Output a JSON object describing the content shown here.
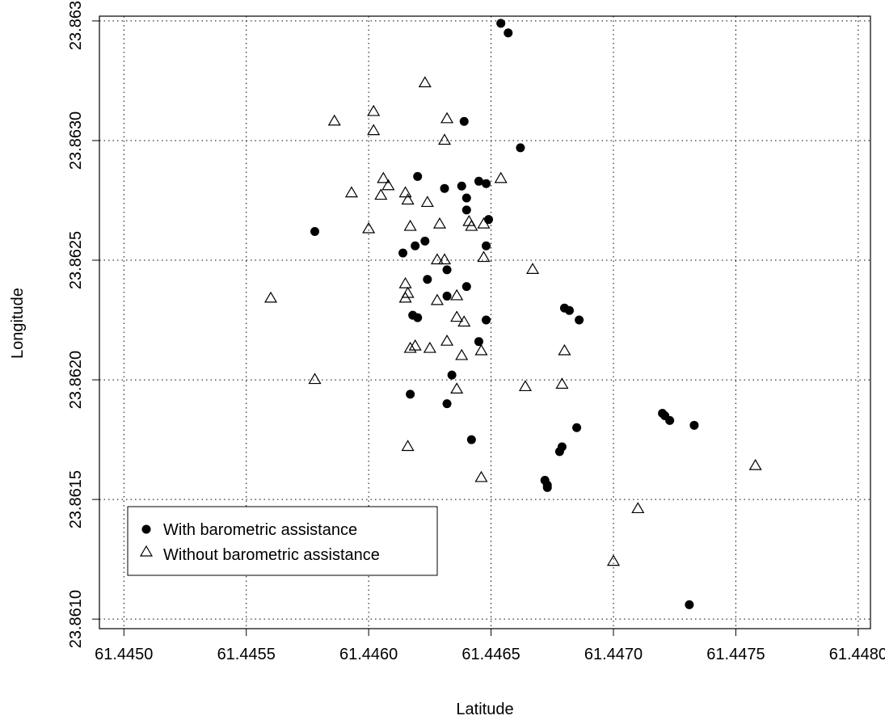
{
  "chart_data": {
    "type": "scatter",
    "title": "",
    "xlabel": "Latitude",
    "ylabel": "Longitude",
    "xlim": [
      61.4449,
      61.44805
    ],
    "ylim": [
      23.86096,
      23.86352
    ],
    "x_ticks": [
      61.445,
      61.4455,
      61.446,
      61.4465,
      61.447,
      61.4475,
      61.448
    ],
    "x_tick_labels": [
      "61.4450",
      "61.4455",
      "61.4460",
      "61.4465",
      "61.4470",
      "61.4475",
      "61.4480"
    ],
    "y_ticks": [
      23.861,
      23.8615,
      23.862,
      23.8625,
      23.863,
      23.8635
    ],
    "y_tick_labels": [
      "23.8610",
      "23.8615",
      "23.8620",
      "23.8625",
      "23.8630",
      "23.8635"
    ],
    "grid": true,
    "legend_position": "bottom-left",
    "series": [
      {
        "name": "With barometric assistance",
        "marker": "filled-circle",
        "color": "#000000",
        "points": [
          [
            61.44654,
            23.86349
          ],
          [
            61.44657,
            23.86345
          ],
          [
            61.44639,
            23.86308
          ],
          [
            61.44662,
            23.86297
          ],
          [
            61.4462,
            23.86285
          ],
          [
            61.44631,
            23.8628
          ],
          [
            61.44638,
            23.86281
          ],
          [
            61.44645,
            23.86283
          ],
          [
            61.44648,
            23.86282
          ],
          [
            61.4464,
            23.86276
          ],
          [
            61.4464,
            23.86271
          ],
          [
            61.44649,
            23.86267
          ],
          [
            61.44578,
            23.86262
          ],
          [
            61.44623,
            23.86258
          ],
          [
            61.44619,
            23.86256
          ],
          [
            61.44614,
            23.86253
          ],
          [
            61.44648,
            23.86256
          ],
          [
            61.44632,
            23.86246
          ],
          [
            61.44624,
            23.86242
          ],
          [
            61.4464,
            23.86239
          ],
          [
            61.44632,
            23.86235
          ],
          [
            61.44618,
            23.86227
          ],
          [
            61.4462,
            23.86226
          ],
          [
            61.44648,
            23.86225
          ],
          [
            61.4468,
            23.8623
          ],
          [
            61.44682,
            23.86229
          ],
          [
            61.44686,
            23.86225
          ],
          [
            61.44645,
            23.86216
          ],
          [
            61.44634,
            23.86202
          ],
          [
            61.44617,
            23.86194
          ],
          [
            61.44632,
            23.8619
          ],
          [
            61.4472,
            23.86186
          ],
          [
            61.44721,
            23.86185
          ],
          [
            61.44723,
            23.86183
          ],
          [
            61.44733,
            23.86181
          ],
          [
            61.44685,
            23.8618
          ],
          [
            61.44642,
            23.86175
          ],
          [
            61.44679,
            23.86172
          ],
          [
            61.44678,
            23.8617
          ],
          [
            61.44672,
            23.86158
          ],
          [
            61.44673,
            23.86156
          ],
          [
            61.44673,
            23.86155
          ],
          [
            61.44731,
            23.86106
          ]
        ]
      },
      {
        "name": "Without barometric assistance",
        "marker": "open-triangle",
        "color": "#000000",
        "points": [
          [
            61.44623,
            23.86324
          ],
          [
            61.44602,
            23.86312
          ],
          [
            61.44586,
            23.86308
          ],
          [
            61.44632,
            23.86309
          ],
          [
            61.44602,
            23.86304
          ],
          [
            61.44631,
            23.863
          ],
          [
            61.44606,
            23.86284
          ],
          [
            61.44608,
            23.86281
          ],
          [
            61.44654,
            23.86284
          ],
          [
            61.44593,
            23.86278
          ],
          [
            61.44605,
            23.86277
          ],
          [
            61.44615,
            23.86278
          ],
          [
            61.44616,
            23.86275
          ],
          [
            61.44624,
            23.86274
          ],
          [
            61.446,
            23.86263
          ],
          [
            61.44617,
            23.86264
          ],
          [
            61.44629,
            23.86265
          ],
          [
            61.44641,
            23.86266
          ],
          [
            61.44642,
            23.86264
          ],
          [
            61.44647,
            23.86265
          ],
          [
            61.44628,
            23.8625
          ],
          [
            61.44631,
            23.8625
          ],
          [
            61.44647,
            23.86251
          ],
          [
            61.44667,
            23.86246
          ],
          [
            61.44615,
            23.8624
          ],
          [
            61.44616,
            23.86236
          ],
          [
            61.44615,
            23.86234
          ],
          [
            61.44628,
            23.86233
          ],
          [
            61.44636,
            23.86235
          ],
          [
            61.4456,
            23.86234
          ],
          [
            61.44636,
            23.86226
          ],
          [
            61.44639,
            23.86224
          ],
          [
            61.44632,
            23.86216
          ],
          [
            61.44617,
            23.86213
          ],
          [
            61.44619,
            23.86214
          ],
          [
            61.44625,
            23.86213
          ],
          [
            61.44638,
            23.8621
          ],
          [
            61.44646,
            23.86212
          ],
          [
            61.4468,
            23.86212
          ],
          [
            61.44578,
            23.862
          ],
          [
            61.44636,
            23.86196
          ],
          [
            61.44664,
            23.86197
          ],
          [
            61.44679,
            23.86198
          ],
          [
            61.44616,
            23.86172
          ],
          [
            61.44646,
            23.86159
          ],
          [
            61.44758,
            23.86164
          ],
          [
            61.4471,
            23.86146
          ],
          [
            61.447,
            23.86124
          ]
        ]
      }
    ]
  }
}
